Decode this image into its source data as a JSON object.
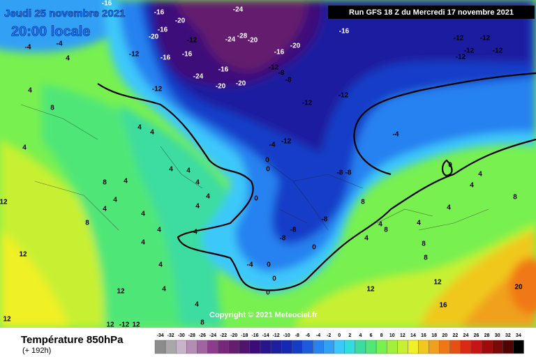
{
  "header": {
    "date": "Jeudi 25 novembre 2021",
    "time": "20:00 locale",
    "run": "Run GFS 18 Z du Mercredi 17 novembre 2021"
  },
  "copyright": "Copyright © 2021 Meteociel.fr",
  "legend": {
    "title": "Température 850hPa",
    "lead": "(+ 192h)",
    "ticks": [
      -34,
      -32,
      -30,
      -28,
      -26,
      -24,
      -22,
      -20,
      -18,
      -16,
      -14,
      -12,
      -10,
      -8,
      -6,
      -4,
      -2,
      0,
      2,
      4,
      6,
      8,
      10,
      12,
      14,
      16,
      18,
      20,
      22,
      24,
      26,
      28,
      30,
      32,
      34
    ],
    "colors": [
      "#8c8c8c",
      "#a8a8a8",
      "#c8b4c8",
      "#b48cb4",
      "#a064a0",
      "#8c3c8c",
      "#78287a",
      "#641e6e",
      "#50146e",
      "#3c0a7a",
      "#28148c",
      "#1e1ea0",
      "#1428b4",
      "#143cc8",
      "#1e5adc",
      "#2882f0",
      "#32a0f5",
      "#3cc8fa",
      "#32dcdc",
      "#3cdca0",
      "#50e678",
      "#78f050",
      "#a0f03c",
      "#c8f032",
      "#f0f028",
      "#f0c81e",
      "#f0a01e",
      "#f07814",
      "#e65014",
      "#dc2814",
      "#c81414",
      "#a00a0a",
      "#780a0a",
      "#500505",
      "#000000"
    ]
  },
  "contour_labels": [
    -16,
    -24,
    -16,
    -20,
    -20,
    -16,
    -12,
    -16,
    -16,
    -12,
    -24,
    -28,
    -20,
    -16,
    -20,
    -12,
    -8,
    -8,
    -20,
    -16,
    -24,
    -20,
    -12,
    -4,
    -4,
    4,
    4,
    8,
    4,
    4,
    -16,
    -12,
    -12,
    -12,
    -12,
    -12,
    -12,
    -12,
    -4,
    -4,
    -12,
    -8,
    -8,
    0,
    0,
    0,
    -8,
    -8,
    -8,
    -4,
    0,
    0,
    0,
    0,
    12,
    12,
    16,
    20,
    4,
    0,
    4,
    4,
    8,
    8,
    4,
    8,
    8,
    4,
    12,
    12,
    12,
    12,
    12,
    -12,
    12,
    4,
    4,
    4,
    4,
    4,
    8,
    4,
    4,
    4,
    4,
    4,
    4,
    4,
    4,
    4,
    4,
    4,
    8,
    8,
    4,
    8
  ]
}
